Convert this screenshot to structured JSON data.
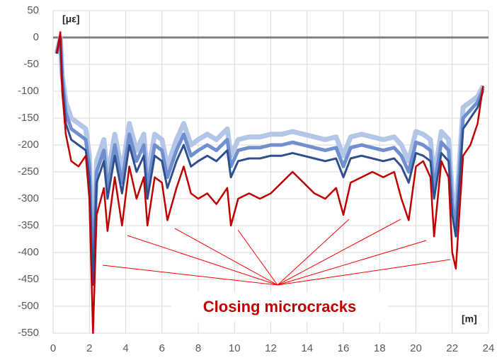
{
  "chart_data": {
    "type": "line",
    "y_axis_label": "[με]",
    "x_axis_label": "[m]",
    "annotation": "Closing microcracks",
    "x": [
      0.2,
      0.4,
      0.5,
      0.7,
      1.0,
      1.4,
      1.8,
      2.0,
      2.2,
      2.4,
      2.8,
      3.0,
      3.4,
      3.8,
      4.2,
      4.6,
      5.0,
      5.2,
      5.6,
      6.0,
      6.3,
      6.8,
      7.2,
      7.6,
      8.0,
      8.5,
      9.0,
      9.6,
      9.8,
      10.2,
      10.8,
      11.4,
      12.0,
      12.6,
      13.2,
      13.8,
      14.4,
      15.0,
      15.6,
      16.0,
      16.4,
      17.0,
      17.6,
      18.2,
      18.8,
      19.2,
      19.6,
      20.0,
      20.4,
      20.8,
      21.0,
      21.4,
      21.8,
      22.0,
      22.2,
      22.6,
      23.0,
      23.4,
      23.7
    ],
    "series": [
      {
        "color": "#b4c6e7",
        "width": 7,
        "values": [
          -30,
          0,
          -70,
          -120,
          -150,
          -160,
          -170,
          -220,
          -420,
          -230,
          -190,
          -260,
          -180,
          -250,
          -160,
          -210,
          -180,
          -260,
          -180,
          -190,
          -240,
          -190,
          -160,
          -200,
          -190,
          -180,
          -190,
          -170,
          -220,
          -190,
          -185,
          -185,
          -180,
          -180,
          -175,
          -180,
          -185,
          -190,
          -185,
          -220,
          -185,
          -180,
          -185,
          -190,
          -185,
          -200,
          -230,
          -175,
          -180,
          -190,
          -260,
          -175,
          -190,
          -290,
          -330,
          -130,
          -120,
          -110,
          -90
        ]
      },
      {
        "color": "#6f8fcf",
        "width": 5,
        "values": [
          -30,
          0,
          -75,
          -140,
          -170,
          -180,
          -190,
          -240,
          -440,
          -250,
          -210,
          -280,
          -200,
          -270,
          -180,
          -230,
          -200,
          -280,
          -200,
          -210,
          -260,
          -210,
          -180,
          -220,
          -210,
          -200,
          -210,
          -190,
          -240,
          -210,
          -205,
          -205,
          -200,
          -200,
          -195,
          -200,
          -205,
          -210,
          -205,
          -240,
          -205,
          -200,
          -205,
          -210,
          -205,
          -220,
          -250,
          -195,
          -200,
          -210,
          -280,
          -195,
          -210,
          -310,
          -350,
          -150,
          -135,
          -120,
          -95
        ]
      },
      {
        "color": "#2f4f8f",
        "width": 3,
        "values": [
          -30,
          0,
          -80,
          -160,
          -190,
          -200,
          -210,
          -260,
          -460,
          -270,
          -230,
          -300,
          -220,
          -290,
          -200,
          -250,
          -220,
          -300,
          -220,
          -230,
          -280,
          -230,
          -200,
          -240,
          -230,
          -220,
          -230,
          -210,
          -260,
          -230,
          -225,
          -225,
          -220,
          -220,
          -215,
          -220,
          -225,
          -230,
          -225,
          -260,
          -225,
          -220,
          -225,
          -230,
          -225,
          -240,
          -270,
          -215,
          -220,
          -230,
          -300,
          -215,
          -230,
          -330,
          -370,
          -170,
          -150,
          -130,
          -100
        ]
      },
      {
        "color": "#c00000",
        "width": 2.5,
        "values": [
          -30,
          10,
          -100,
          -180,
          -230,
          -240,
          -220,
          -300,
          -550,
          -330,
          -280,
          -360,
          -260,
          -350,
          -240,
          -300,
          -260,
          -350,
          -260,
          -270,
          -340,
          -280,
          -240,
          -290,
          -300,
          -290,
          -310,
          -280,
          -350,
          -300,
          -290,
          -300,
          -290,
          -270,
          -250,
          -270,
          -290,
          -300,
          -280,
          -330,
          -270,
          -260,
          -250,
          -260,
          -250,
          -300,
          -340,
          -240,
          -230,
          -260,
          -370,
          -230,
          -260,
          -400,
          -430,
          -220,
          -200,
          -160,
          -90
        ]
      }
    ],
    "xlim": [
      0,
      24
    ],
    "xticks": [
      0,
      2,
      4,
      6,
      8,
      10,
      12,
      14,
      16,
      18,
      20,
      22,
      24
    ],
    "ylim": [
      -550,
      50
    ],
    "yticks": [
      50,
      0,
      -50,
      -100,
      -150,
      -200,
      -250,
      -300,
      -350,
      -400,
      -450,
      -500,
      -550
    ],
    "grid": true,
    "zero_line": true
  }
}
